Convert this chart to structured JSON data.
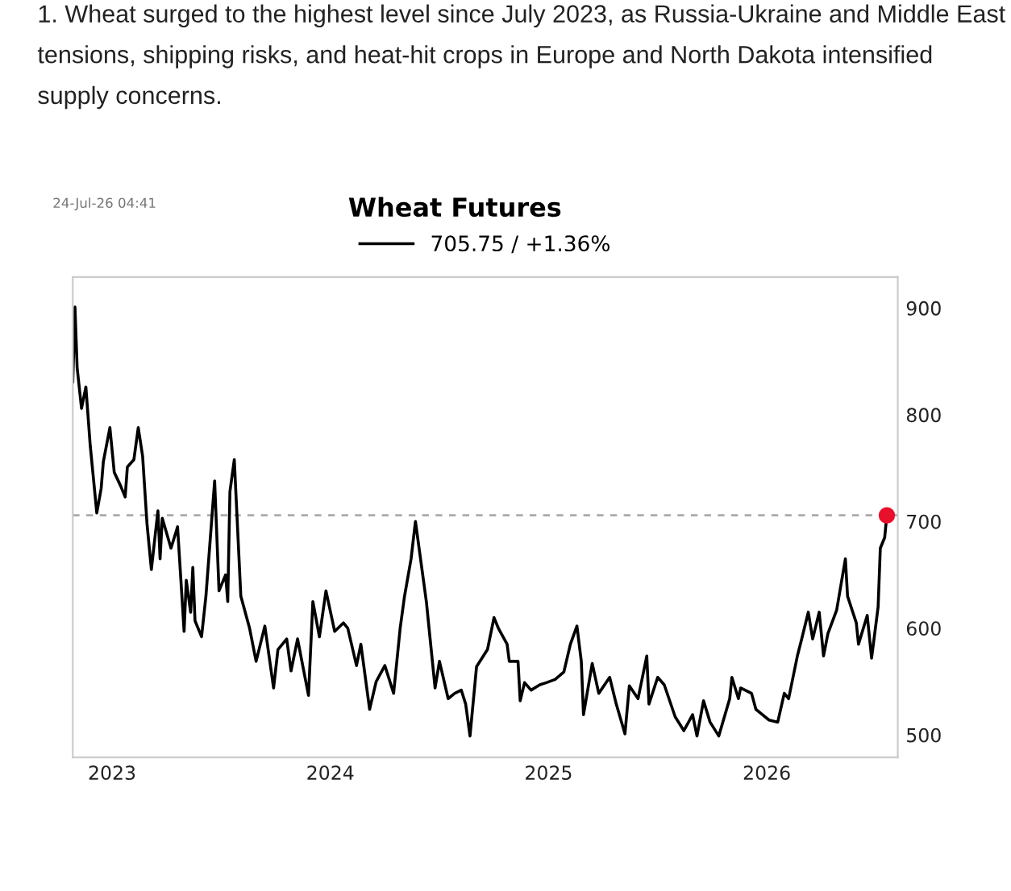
{
  "chart_data": {
    "type": "line",
    "title": "Wheat Futures",
    "annotations": [
      "1. Wheat surged to the highest level since July 2023, as Russia-Ukraine and Middle East tensions, shipping risks, and heat-hit crops in Europe and North Dakota intensified supply concerns.",
      "24-Jul-26 04:41"
    ],
    "series": [
      {
        "name": "705.75 / +1.36%",
        "color": "#000000",
        "x": [
          2022.82,
          2022.83,
          2022.84,
          2022.86,
          2022.88,
          2022.9,
          2022.93,
          2022.95,
          2022.96,
          2022.99,
          2023.01,
          2023.04,
          2023.06,
          2023.07,
          2023.1,
          2023.12,
          2023.14,
          2023.16,
          2023.18,
          2023.21,
          2023.22,
          2023.23,
          2023.27,
          2023.3,
          2023.33,
          2023.34,
          2023.36,
          2023.37,
          2023.38,
          2023.41,
          2023.43,
          2023.47,
          2023.49,
          2023.52,
          2023.53,
          2023.54,
          2023.56,
          2023.59,
          2023.63,
          2023.66,
          2023.7,
          2023.74,
          2023.76,
          2023.8,
          2023.82,
          2023.85,
          2023.9,
          2023.92,
          2023.95,
          2023.98,
          2024.02,
          2024.06,
          2024.08,
          2024.12,
          2024.14,
          2024.18,
          2024.21,
          2024.25,
          2024.29,
          2024.32,
          2024.34,
          2024.37,
          2024.39,
          2024.41,
          2024.44,
          2024.48,
          2024.5,
          2024.54,
          2024.57,
          2024.6,
          2024.62,
          2024.64,
          2024.67,
          2024.72,
          2024.75,
          2024.77,
          2024.81,
          2024.82,
          2024.86,
          2024.87,
          2024.89,
          2024.92,
          2024.96,
          2024.99,
          2025.03,
          2025.07,
          2025.1,
          2025.13,
          2025.15,
          2025.16,
          2025.2,
          2025.23,
          2025.28,
          2025.31,
          2025.35,
          2025.37,
          2025.41,
          2025.45,
          2025.46,
          2025.5,
          2025.53,
          2025.58,
          2025.62,
          2025.66,
          2025.68,
          2025.71,
          2025.74,
          2025.78,
          2025.83,
          2025.84,
          2025.87,
          2025.88,
          2025.93,
          2025.95,
          2025.98,
          2026.01,
          2026.05,
          2026.08,
          2026.1,
          2026.12,
          2026.14,
          2026.16,
          2026.19,
          2026.21,
          2026.24,
          2026.26,
          2026.28,
          2026.32,
          2026.36,
          2026.37,
          2026.41,
          2026.42,
          2026.46,
          2026.48,
          2026.51,
          2026.52,
          2026.54,
          2026.55
        ],
        "values": [
          831,
          901,
          844,
          806,
          826,
          771,
          708,
          731,
          756,
          788,
          746,
          733,
          723,
          751,
          758,
          788,
          761,
          698,
          655,
          710,
          665,
          703,
          675,
          695,
          597,
          645,
          615,
          657,
          607,
          592,
          630,
          738,
          635,
          650,
          625,
          728,
          758,
          630,
          600,
          569,
          602,
          544,
          580,
          590,
          560,
          590,
          537,
          625,
          592,
          635,
          597,
          605,
          600,
          565,
          585,
          524,
          550,
          565,
          539,
          600,
          630,
          665,
          700,
          670,
          625,
          544,
          569,
          534,
          539,
          542,
          529,
          499,
          564,
          580,
          610,
          600,
          585,
          569,
          569,
          532,
          549,
          542,
          547,
          549,
          552,
          559,
          585,
          602,
          569,
          519,
          567,
          539,
          554,
          529,
          501,
          546,
          534,
          574,
          529,
          554,
          547,
          517,
          504,
          519,
          499,
          532,
          512,
          499,
          534,
          554,
          534,
          544,
          539,
          524,
          519,
          514,
          512,
          539,
          534,
          554,
          574,
          590,
          615,
          590,
          615,
          574,
          595,
          617,
          665,
          630,
          605,
          585,
          612,
          572,
          620,
          675,
          685,
          705.75
        ]
      },
      {
        "color": "#e8102a",
        "type": "scatter",
        "x": [
          2026.55
        ],
        "values": [
          705.75
        ]
      }
    ],
    "xlim": [
      2022.82,
      2026.6
    ],
    "xticks": [
      2023,
      2024,
      2025,
      2026
    ],
    "ylim": [
      479,
      929
    ],
    "yticks": [
      500,
      600,
      700,
      800,
      900
    ],
    "ref_lines": [
      {
        "axis": "y",
        "value": 705.75,
        "color": "#aaaaaa",
        "line_style": "dashed"
      }
    ],
    "legend": "top",
    "grid": false
  }
}
